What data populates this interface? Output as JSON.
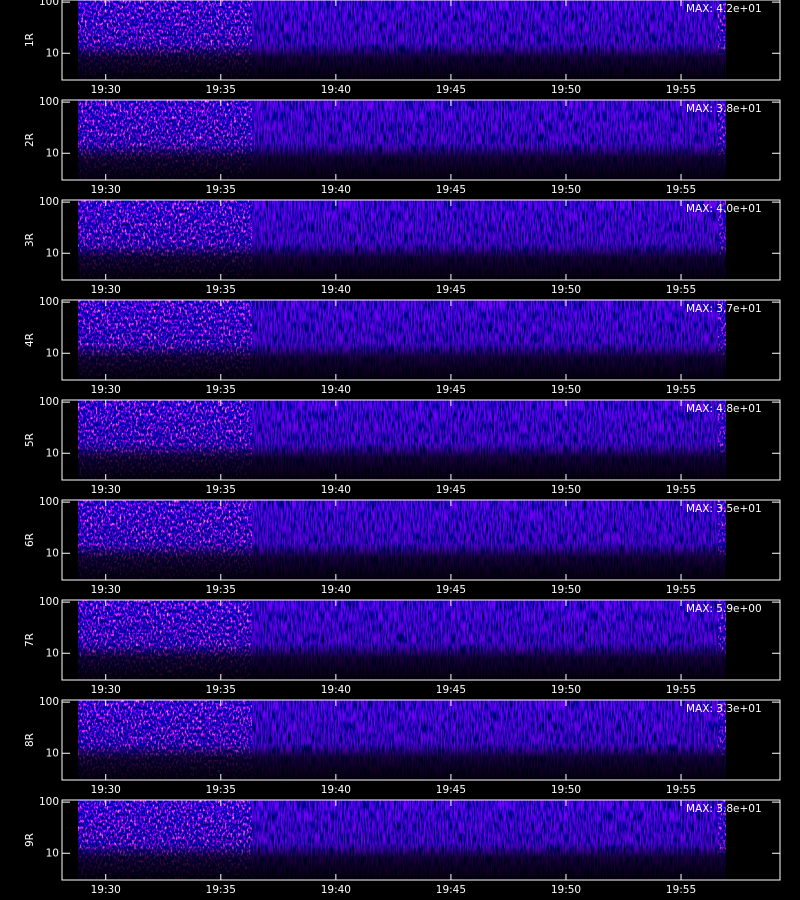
{
  "chart_data": [
    {
      "type": "spectrogram",
      "ylabel": "1R",
      "annotation": "MAX: 4.2e+01",
      "xlim": [
        1168.1,
        1199.3
      ],
      "xticks": [
        {
          "value": 1170,
          "label": "19:30"
        },
        {
          "value": 1175,
          "label": "19:35"
        },
        {
          "value": 1180,
          "label": "19:40"
        },
        {
          "value": 1185,
          "label": "19:45"
        },
        {
          "value": 1190,
          "label": "19:50"
        },
        {
          "value": 1195,
          "label": "19:55"
        }
      ],
      "ylim": [
        3,
        110
      ],
      "yticks": [
        10,
        100
      ],
      "log_y": true
    },
    {
      "type": "spectrogram",
      "ylabel": "2R",
      "annotation": "MAX: 3.8e+01",
      "xlim": [
        1168.1,
        1199.3
      ],
      "xticks": [
        {
          "value": 1170,
          "label": "19:30"
        },
        {
          "value": 1175,
          "label": "19:35"
        },
        {
          "value": 1180,
          "label": "19:40"
        },
        {
          "value": 1185,
          "label": "19:45"
        },
        {
          "value": 1190,
          "label": "19:50"
        },
        {
          "value": 1195,
          "label": "19:55"
        }
      ],
      "ylim": [
        3,
        110
      ],
      "yticks": [
        10,
        100
      ],
      "log_y": true
    },
    {
      "type": "spectrogram",
      "ylabel": "3R",
      "annotation": "MAX: 4.0e+01",
      "xlim": [
        1168.1,
        1199.3
      ],
      "xticks": [
        {
          "value": 1170,
          "label": "19:30"
        },
        {
          "value": 1175,
          "label": "19:35"
        },
        {
          "value": 1180,
          "label": "19:40"
        },
        {
          "value": 1185,
          "label": "19:45"
        },
        {
          "value": 1190,
          "label": "19:50"
        },
        {
          "value": 1195,
          "label": "19:55"
        }
      ],
      "ylim": [
        3,
        110
      ],
      "yticks": [
        10,
        100
      ],
      "log_y": true
    },
    {
      "type": "spectrogram",
      "ylabel": "4R",
      "annotation": "MAX: 3.7e+01",
      "xlim": [
        1168.1,
        1199.3
      ],
      "xticks": [
        {
          "value": 1170,
          "label": "19:30"
        },
        {
          "value": 1175,
          "label": "19:35"
        },
        {
          "value": 1180,
          "label": "19:40"
        },
        {
          "value": 1185,
          "label": "19:45"
        },
        {
          "value": 1190,
          "label": "19:50"
        },
        {
          "value": 1195,
          "label": "19:55"
        }
      ],
      "ylim": [
        3,
        110
      ],
      "yticks": [
        10,
        100
      ],
      "log_y": true
    },
    {
      "type": "spectrogram",
      "ylabel": "5R",
      "annotation": "MAX: 4.8e+01",
      "xlim": [
        1168.1,
        1199.3
      ],
      "xticks": [
        {
          "value": 1170,
          "label": "19:30"
        },
        {
          "value": 1175,
          "label": "19:35"
        },
        {
          "value": 1180,
          "label": "19:40"
        },
        {
          "value": 1185,
          "label": "19:45"
        },
        {
          "value": 1190,
          "label": "19:50"
        },
        {
          "value": 1195,
          "label": "19:55"
        }
      ],
      "ylim": [
        3,
        110
      ],
      "yticks": [
        10,
        100
      ],
      "log_y": true
    },
    {
      "type": "spectrogram",
      "ylabel": "6R",
      "annotation": "MAX: 3.5e+01",
      "xlim": [
        1168.1,
        1199.3
      ],
      "xticks": [
        {
          "value": 1170,
          "label": "19:30"
        },
        {
          "value": 1175,
          "label": "19:35"
        },
        {
          "value": 1180,
          "label": "19:40"
        },
        {
          "value": 1185,
          "label": "19:45"
        },
        {
          "value": 1190,
          "label": "19:50"
        },
        {
          "value": 1195,
          "label": "19:55"
        }
      ],
      "ylim": [
        3,
        110
      ],
      "yticks": [
        10,
        100
      ],
      "log_y": true
    },
    {
      "type": "spectrogram",
      "ylabel": "7R",
      "annotation": "MAX: 5.9e+00",
      "xlim": [
        1168.1,
        1199.3
      ],
      "xticks": [
        {
          "value": 1170,
          "label": "19:30"
        },
        {
          "value": 1175,
          "label": "19:35"
        },
        {
          "value": 1180,
          "label": "19:40"
        },
        {
          "value": 1185,
          "label": "19:45"
        },
        {
          "value": 1190,
          "label": "19:50"
        },
        {
          "value": 1195,
          "label": "19:55"
        }
      ],
      "ylim": [
        3,
        110
      ],
      "yticks": [
        10,
        100
      ],
      "log_y": true
    },
    {
      "type": "spectrogram",
      "ylabel": "8R",
      "annotation": "MAX: 3.3e+01",
      "xlim": [
        1168.1,
        1199.3
      ],
      "xticks": [
        {
          "value": 1170,
          "label": "19:30"
        },
        {
          "value": 1175,
          "label": "19:35"
        },
        {
          "value": 1180,
          "label": "19:40"
        },
        {
          "value": 1185,
          "label": "19:45"
        },
        {
          "value": 1190,
          "label": "19:50"
        },
        {
          "value": 1195,
          "label": "19:55"
        }
      ],
      "ylim": [
        3,
        110
      ],
      "yticks": [
        10,
        100
      ],
      "log_y": true
    },
    {
      "type": "spectrogram",
      "ylabel": "9R",
      "annotation": "MAX: 3.8e+01",
      "xlim": [
        1168.1,
        1199.3
      ],
      "xticks": [
        {
          "value": 1170,
          "label": "19:30"
        },
        {
          "value": 1175,
          "label": "19:35"
        },
        {
          "value": 1180,
          "label": "19:40"
        },
        {
          "value": 1185,
          "label": "19:45"
        },
        {
          "value": 1190,
          "label": "19:50"
        },
        {
          "value": 1195,
          "label": "19:55"
        }
      ],
      "ylim": [
        3,
        110
      ],
      "yticks": [
        10,
        100
      ],
      "log_y": true
    }
  ]
}
